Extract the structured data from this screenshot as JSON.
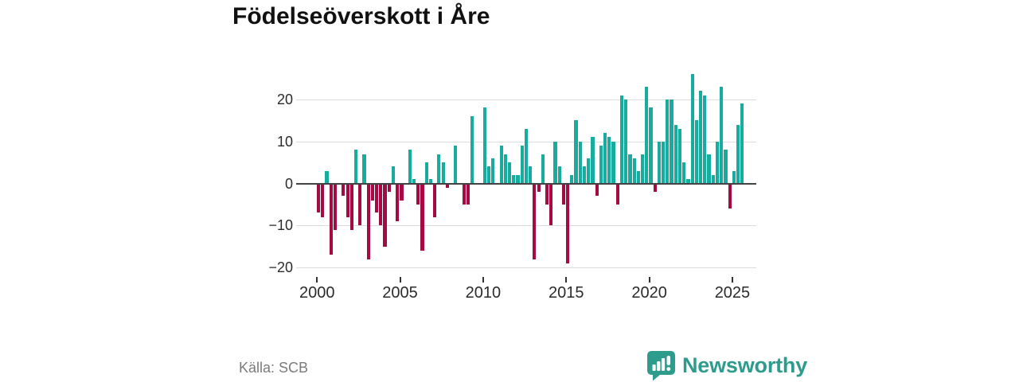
{
  "page": {
    "title": "Födelseöverskott i Åre",
    "source": "Källa: SCB",
    "brand": "Newsworthy"
  },
  "colors": {
    "positive_bar": "#17ac9d",
    "negative_bar": "#a50b42",
    "gridline": "#dcdcdc",
    "zero_line": "#434343",
    "axis_text": "#2b2b2b",
    "source_text": "#7b7b7b",
    "brand_teal": "#2e9c8d"
  },
  "chart_data": {
    "type": "bar",
    "title": "Födelseöverskott i Åre",
    "xlabel": "",
    "ylabel": "",
    "x_unit": "quarter",
    "x_range": "2000 Q1 – 2025 Q3",
    "ylim": [
      -22,
      27
    ],
    "yticks": [
      20,
      10,
      0,
      -10,
      -20
    ],
    "ytick_labels": [
      "20",
      "10",
      "0",
      "−10",
      "−20"
    ],
    "xticks": [
      2000,
      2005,
      2010,
      2015,
      2020,
      2025
    ],
    "xtick_labels": [
      "2000",
      "2005",
      "2010",
      "2015",
      "2020",
      "2025"
    ],
    "grid": "horizontal",
    "legend": "none",
    "series_note": "quarterly birth surplus (births minus deaths); positive bars teal, negative bars crimson",
    "years": [
      {
        "year": 2000,
        "values": [
          -7,
          -8,
          3,
          -17
        ]
      },
      {
        "year": 2001,
        "values": [
          -11,
          0,
          -3,
          -8
        ]
      },
      {
        "year": 2002,
        "values": [
          -11,
          8,
          -10,
          7
        ]
      },
      {
        "year": 2003,
        "values": [
          -18,
          -4,
          -7,
          -10
        ]
      },
      {
        "year": 2004,
        "values": [
          -15,
          -2,
          4,
          -9
        ]
      },
      {
        "year": 2005,
        "values": [
          -4,
          0,
          8,
          1
        ]
      },
      {
        "year": 2006,
        "values": [
          -5,
          -16,
          5,
          1
        ]
      },
      {
        "year": 2007,
        "values": [
          -8,
          7,
          5,
          -1
        ]
      },
      {
        "year": 2008,
        "values": [
          0,
          9,
          0,
          -5
        ]
      },
      {
        "year": 2009,
        "values": [
          -5,
          16,
          0,
          0
        ]
      },
      {
        "year": 2010,
        "values": [
          18,
          4,
          6,
          0
        ]
      },
      {
        "year": 2011,
        "values": [
          9,
          7,
          5,
          2
        ]
      },
      {
        "year": 2012,
        "values": [
          2,
          9,
          13,
          4
        ]
      },
      {
        "year": 2013,
        "values": [
          -18,
          -2,
          7,
          -5
        ]
      },
      {
        "year": 2014,
        "values": [
          -10,
          10,
          4,
          -5
        ]
      },
      {
        "year": 2015,
        "values": [
          -19,
          2,
          15,
          10
        ]
      },
      {
        "year": 2016,
        "values": [
          4,
          6,
          11,
          -3
        ]
      },
      {
        "year": 2017,
        "values": [
          9,
          12,
          11,
          10
        ]
      },
      {
        "year": 2018,
        "values": [
          -5,
          21,
          20,
          7
        ]
      },
      {
        "year": 2019,
        "values": [
          6,
          3,
          7,
          23
        ]
      },
      {
        "year": 2020,
        "values": [
          18,
          -2,
          10,
          10
        ]
      },
      {
        "year": 2021,
        "values": [
          20,
          20,
          14,
          13
        ]
      },
      {
        "year": 2022,
        "values": [
          5,
          1,
          26,
          15
        ]
      },
      {
        "year": 2023,
        "values": [
          22,
          21,
          7,
          2
        ]
      },
      {
        "year": 2024,
        "values": [
          10,
          23,
          8,
          -6
        ]
      },
      {
        "year": 2025,
        "values": [
          3,
          14,
          19
        ]
      }
    ]
  }
}
